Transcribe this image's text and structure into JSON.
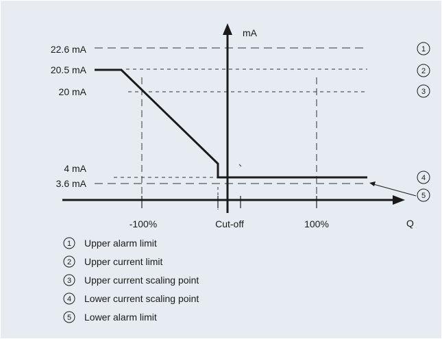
{
  "axes": {
    "y_label": "mA",
    "x_label": "Q"
  },
  "y_levels": [
    {
      "id": "upper-alarm",
      "label": "22.6 mA",
      "marker": "1"
    },
    {
      "id": "upper-current",
      "label": "20.5 mA",
      "marker": "2"
    },
    {
      "id": "upper-scaling",
      "label": "20 mA",
      "marker": "3"
    },
    {
      "id": "lower-scaling",
      "label": "4 mA",
      "marker": "4"
    },
    {
      "id": "lower-alarm",
      "label": "3.6 mA",
      "marker": "5"
    }
  ],
  "x_ticks": [
    {
      "id": "minus-100",
      "label": "-100%"
    },
    {
      "id": "cut-off",
      "label": "Cut-off"
    },
    {
      "id": "plus-100",
      "label": "100%"
    }
  ],
  "legend": [
    {
      "num": "1",
      "text": "Upper alarm limit"
    },
    {
      "num": "2",
      "text": "Upper current limit"
    },
    {
      "num": "3",
      "text": "Upper current scaling point"
    },
    {
      "num": "4",
      "text": "Lower current scaling point"
    },
    {
      "num": "5",
      "text": "Lower alarm limit"
    }
  ],
  "colors": {
    "background": "#e6ecf1",
    "line": "#1a1a1a"
  }
}
